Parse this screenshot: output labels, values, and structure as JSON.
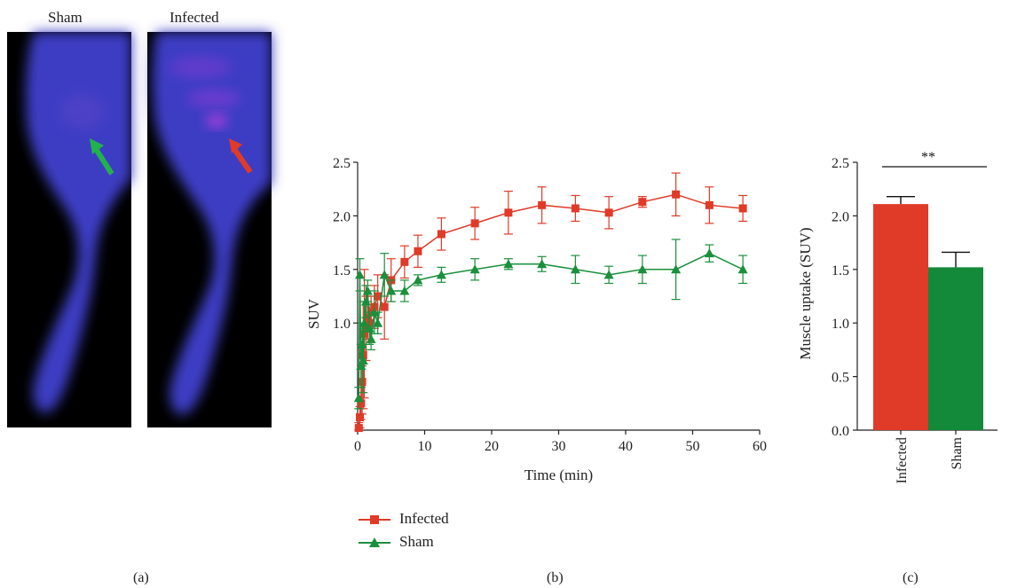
{
  "panel_a": {
    "titles": [
      "Sham",
      "Infected"
    ],
    "arrow_colors": [
      "#22b24c",
      "#e03a28"
    ]
  },
  "panel_labels": [
    "(a)",
    "(b)",
    "(c)"
  ],
  "chart_data": [
    {
      "type": "line",
      "xlabel": "Time (min)",
      "ylabel": "SUV",
      "xlim": [
        0,
        60
      ],
      "ylim": [
        0.0,
        2.5
      ],
      "xticks": [
        "0",
        "10",
        "20",
        "30",
        "40",
        "50",
        "60"
      ],
      "yticks": [
        "1.0",
        "1.5",
        "2.0",
        "2.5"
      ],
      "legend_position": "below",
      "series": [
        {
          "name": "Infected",
          "color": "#e03a28",
          "marker": "square",
          "x": [
            0.17,
            0.33,
            0.5,
            0.67,
            0.83,
            1.0,
            1.25,
            1.5,
            1.75,
            2.0,
            2.5,
            3.0,
            4.0,
            5.0,
            7.0,
            9.0,
            12.5,
            17.5,
            22.5,
            27.5,
            32.5,
            37.5,
            42.5,
            47.5,
            52.5,
            57.5
          ],
          "y": [
            0.02,
            0.12,
            0.25,
            0.45,
            0.7,
            0.9,
            0.95,
            1.05,
            1.0,
            1.1,
            1.15,
            1.25,
            1.15,
            1.4,
            1.57,
            1.67,
            1.83,
            1.93,
            2.03,
            2.1,
            2.07,
            2.03,
            2.13,
            2.2,
            2.1,
            2.07
          ],
          "err": [
            0.05,
            0.1,
            0.15,
            0.3,
            0.5,
            0.6,
            0.3,
            0.2,
            0.15,
            0.15,
            0.2,
            0.2,
            0.3,
            0.2,
            0.15,
            0.15,
            0.15,
            0.15,
            0.2,
            0.17,
            0.12,
            0.15,
            0.05,
            0.2,
            0.17,
            0.12
          ]
        },
        {
          "name": "Sham",
          "color": "#1a8f3c",
          "marker": "triangle",
          "x": [
            0.17,
            0.33,
            0.5,
            0.67,
            0.83,
            1.0,
            1.25,
            1.5,
            1.75,
            2.0,
            2.5,
            3.0,
            4.0,
            5.0,
            7.0,
            9.0,
            12.5,
            17.5,
            22.5,
            27.5,
            32.5,
            37.5,
            42.5,
            47.5,
            52.5,
            57.5
          ],
          "y": [
            0.3,
            1.45,
            0.6,
            0.8,
            0.65,
            1.0,
            1.2,
            1.3,
            0.95,
            0.85,
            1.1,
            1.0,
            1.45,
            1.3,
            1.3,
            1.4,
            1.45,
            1.5,
            1.55,
            1.55,
            1.5,
            1.45,
            1.5,
            1.5,
            1.65,
            1.5
          ],
          "err": [
            0.1,
            0.15,
            0.2,
            0.2,
            0.3,
            0.2,
            0.15,
            0.1,
            0.15,
            0.1,
            0.2,
            0.1,
            0.2,
            0.1,
            0.1,
            0.05,
            0.07,
            0.1,
            0.05,
            0.07,
            0.13,
            0.08,
            0.13,
            0.28,
            0.08,
            0.13
          ]
        }
      ]
    },
    {
      "type": "bar",
      "ylabel": "Muscle uptake (SUV)",
      "ylim": [
        0.0,
        2.5
      ],
      "yticks": [
        "0.0",
        "0.5",
        "1.0",
        "1.5",
        "2.0",
        "2.5"
      ],
      "categories": [
        "Infected",
        "Sham"
      ],
      "values": [
        2.11,
        1.52
      ],
      "errors": [
        0.07,
        0.14
      ],
      "colors": [
        "#e03a28",
        "#13893a"
      ],
      "significance": "**"
    }
  ]
}
